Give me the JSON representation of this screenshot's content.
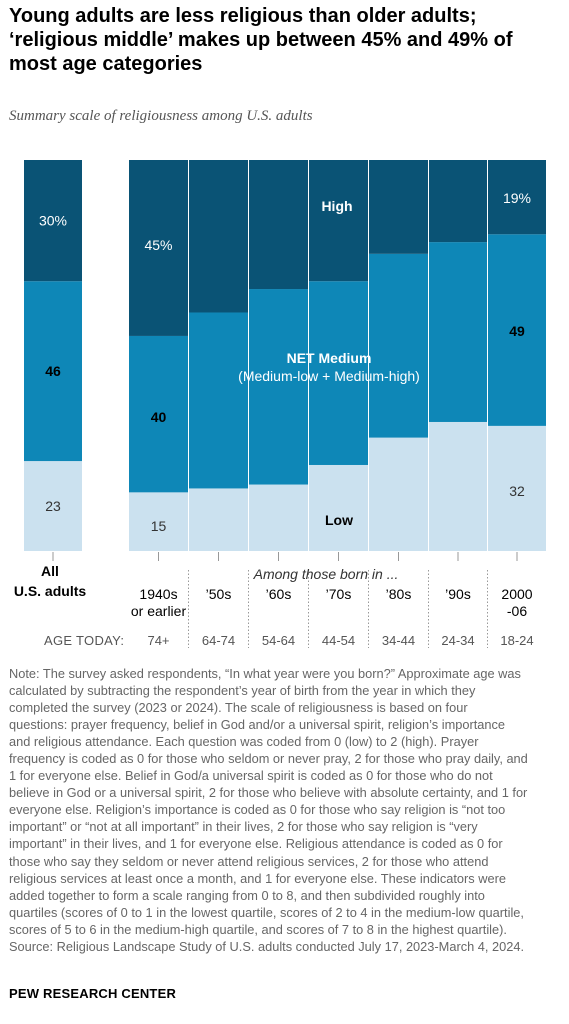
{
  "title": "Young adults are less religious than older adults; ‘religious middle’ makes up between 45% and 49% of most age categories",
  "subtitle": "Summary scale of religiousness among U.S. adults",
  "colors": {
    "high": "#0a5375",
    "medium": "#0e87b7",
    "low": "#cbe1ef"
  },
  "chart_data": {
    "type": "bar",
    "stacked": true,
    "ylim": [
      0,
      100
    ],
    "categories": [
      "All U.S. adults",
      "1940s or earlier",
      "’50s",
      "’60s",
      "’70s",
      "’80s",
      "’90s",
      "2000 -06"
    ],
    "ages": [
      "",
      "74+",
      "64-74",
      "54-64",
      "44-54",
      "34-44",
      "24-34",
      "18-24"
    ],
    "series": [
      {
        "name": "Low",
        "values": [
          23,
          15,
          16,
          17,
          22,
          29,
          33,
          32
        ]
      },
      {
        "name": "NET Medium",
        "values": [
          46,
          40,
          45,
          50,
          47,
          47,
          46,
          49
        ]
      },
      {
        "name": "High",
        "values": [
          30,
          45,
          39,
          33,
          31,
          24,
          21,
          19
        ]
      }
    ],
    "data_labels": {
      "all_adults": {
        "high": "30%",
        "medium": "46",
        "low": "23"
      },
      "oldest": {
        "high": "45%",
        "medium": "40",
        "low": "15"
      },
      "youngest": {
        "high": "19%",
        "medium": "49",
        "low": "32"
      }
    },
    "band_labels": {
      "high": "High",
      "medium": "NET Medium",
      "medium_sub": "(Medium-low + Medium-high)",
      "low": "Low"
    },
    "all_label_line1": "All",
    "all_label_line2": "U.S. adults",
    "x_note": "Among those born in ...",
    "age_axis_label": "AGE TODAY:"
  },
  "note_lines": [
    "Note: The survey asked respondents, “In what year were you born?” Approximate age was",
    "calculated by subtracting the respondent’s year of birth from the year in which they",
    "completed the survey (2023 or 2024). The scale of religiousness is based on four",
    "questions: prayer frequency, belief in God and/or a universal spirit, religion’s importance",
    "and religious attendance. Each question was coded from 0 (low) to 2 (high). Prayer",
    "frequency is coded as 0 for those who seldom or never pray, 2 for those who pray daily, and",
    "1 for everyone else. Belief in God/a universal spirit is coded as 0 for those who do not",
    "believe in God or a universal spirit, 2 for those who believe with absolute certainty, and 1 for",
    "everyone else. Religion’s importance is coded as 0 for those who say religion is “not too",
    "important” or “not at all important” in their lives, 2 for those who say religion is “very",
    "important” in their lives, and 1 for everyone else. Religious attendance is coded as 0 for",
    "those who say they seldom or never attend religious services, 2 for those who attend",
    "religious services at least once a month, and 1 for everyone else. These indicators were",
    "added together to form a scale ranging from 0 to 8, and then subdivided roughly into",
    "quartiles (scores of 0 to 1 in the lowest quartile, scores of 2 to 4 in the medium-low quartile,",
    "scores of 5 to 6 in the medium-high quartile, and scores of 7 to 8 in the highest quartile).",
    "Source: Religious Landscape Study of U.S. adults conducted July 17, 2023-March 4, 2024."
  ],
  "credit": "PEW RESEARCH CENTER"
}
